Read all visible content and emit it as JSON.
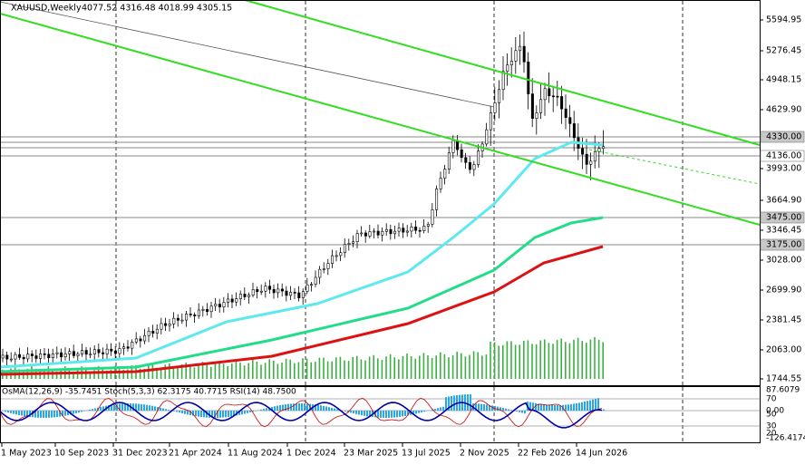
{
  "header": {
    "symbol": "XAUUSD,Weekly",
    "ohlc": "4077.52 4316.48 4018.99 4305.15"
  },
  "price_axis": [
    "5594.95",
    "5276.45",
    "4948.15",
    "4629.90",
    "3993.00",
    "3664.90",
    "3346.45",
    "3028.00",
    "2699.90",
    "2381.45",
    "2063.00",
    "1744.55"
  ],
  "price_tags": [
    "4330.00",
    "4136.00",
    "3475.00",
    "3175.00"
  ],
  "indicator": {
    "label": "OsMA(12,26,9) -35.7451  Stoch(5,3,3) 62.3175 40.7715  RSI(14) 48.7500",
    "axis": [
      "87.6079",
      "70",
      "0.00",
      "50",
      "30",
      "20",
      "-126.4174"
    ]
  },
  "dates": [
    "1 May 2023",
    "10 Sep 2023",
    "31 Dec 2023",
    "21 Apr 2024",
    "11 Aug 2024",
    "1 Dec 2024",
    "23 Mar 2025",
    "13 Jul 2025",
    "2 Nov 2025",
    "22 Feb 2026",
    "14 Jun 2026"
  ]
}
